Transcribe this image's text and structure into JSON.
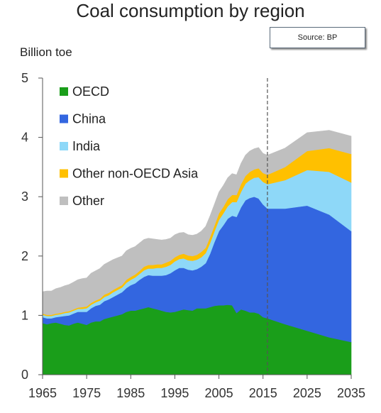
{
  "chart_data": {
    "type": "area",
    "title": "Coal consumption by region",
    "ylabel": "Billion toe",
    "source": "Source: BP",
    "ylim": [
      0,
      5
    ],
    "xlim": [
      1965,
      2035
    ],
    "yticks": [
      0,
      1,
      2,
      3,
      4,
      5
    ],
    "xticks": [
      1965,
      1975,
      1985,
      1995,
      2005,
      2015,
      2025,
      2035
    ],
    "forecast_divider_x": 2016,
    "stacked": true,
    "legend_position": "top-left",
    "grid": false,
    "x": [
      1965,
      1966,
      1967,
      1968,
      1969,
      1970,
      1971,
      1972,
      1973,
      1974,
      1975,
      1976,
      1977,
      1978,
      1979,
      1980,
      1981,
      1982,
      1983,
      1984,
      1985,
      1986,
      1987,
      1988,
      1989,
      1990,
      1991,
      1992,
      1993,
      1994,
      1995,
      1996,
      1997,
      1998,
      1999,
      2000,
      2001,
      2002,
      2003,
      2004,
      2005,
      2006,
      2007,
      2008,
      2009,
      2010,
      2011,
      2012,
      2013,
      2014,
      2015,
      2016,
      2020,
      2025,
      2030,
      2035
    ],
    "series": [
      {
        "name": "OECD",
        "color": "#1a9e1a",
        "values": [
          0.87,
          0.85,
          0.87,
          0.88,
          0.86,
          0.84,
          0.83,
          0.86,
          0.88,
          0.86,
          0.84,
          0.88,
          0.9,
          0.9,
          0.94,
          0.96,
          0.98,
          1.0,
          1.02,
          1.06,
          1.08,
          1.08,
          1.1,
          1.12,
          1.14,
          1.12,
          1.1,
          1.08,
          1.06,
          1.05,
          1.06,
          1.08,
          1.1,
          1.09,
          1.08,
          1.12,
          1.12,
          1.12,
          1.14,
          1.16,
          1.17,
          1.17,
          1.18,
          1.17,
          1.04,
          1.1,
          1.08,
          1.05,
          1.05,
          1.03,
          0.97,
          0.95,
          0.85,
          0.74,
          0.63,
          0.55
        ]
      },
      {
        "name": "China",
        "color": "#3366e0",
        "values": [
          0.1,
          0.1,
          0.08,
          0.09,
          0.12,
          0.15,
          0.17,
          0.17,
          0.18,
          0.2,
          0.22,
          0.24,
          0.26,
          0.28,
          0.3,
          0.31,
          0.33,
          0.35,
          0.37,
          0.4,
          0.43,
          0.46,
          0.5,
          0.53,
          0.54,
          0.55,
          0.57,
          0.59,
          0.62,
          0.66,
          0.7,
          0.72,
          0.7,
          0.68,
          0.68,
          0.66,
          0.7,
          0.76,
          0.9,
          1.08,
          1.25,
          1.35,
          1.45,
          1.51,
          1.62,
          1.72,
          1.86,
          1.93,
          1.95,
          1.94,
          1.9,
          1.85,
          1.95,
          2.11,
          2.07,
          1.87
        ]
      },
      {
        "name": "India",
        "color": "#8ed8f8",
        "values": [
          0.04,
          0.04,
          0.04,
          0.04,
          0.04,
          0.05,
          0.05,
          0.05,
          0.05,
          0.05,
          0.06,
          0.06,
          0.06,
          0.07,
          0.07,
          0.07,
          0.08,
          0.08,
          0.08,
          0.09,
          0.09,
          0.1,
          0.1,
          0.11,
          0.11,
          0.12,
          0.13,
          0.13,
          0.14,
          0.14,
          0.15,
          0.15,
          0.16,
          0.16,
          0.16,
          0.16,
          0.16,
          0.17,
          0.18,
          0.18,
          0.19,
          0.2,
          0.21,
          0.23,
          0.25,
          0.26,
          0.28,
          0.3,
          0.32,
          0.36,
          0.38,
          0.41,
          0.48,
          0.6,
          0.72,
          0.82
        ]
      },
      {
        "name": "Other non-OECD Asia",
        "color": "#ffc000",
        "values": [
          0.02,
          0.02,
          0.02,
          0.02,
          0.02,
          0.02,
          0.02,
          0.02,
          0.02,
          0.03,
          0.03,
          0.03,
          0.03,
          0.03,
          0.04,
          0.04,
          0.04,
          0.04,
          0.04,
          0.05,
          0.05,
          0.05,
          0.05,
          0.06,
          0.06,
          0.06,
          0.06,
          0.06,
          0.07,
          0.07,
          0.07,
          0.07,
          0.08,
          0.08,
          0.08,
          0.08,
          0.09,
          0.09,
          0.1,
          0.1,
          0.11,
          0.11,
          0.12,
          0.12,
          0.12,
          0.13,
          0.13,
          0.14,
          0.14,
          0.15,
          0.15,
          0.16,
          0.22,
          0.32,
          0.4,
          0.48
        ]
      },
      {
        "name": "Other",
        "color": "#bfbfbf",
        "values": [
          0.37,
          0.4,
          0.4,
          0.42,
          0.43,
          0.44,
          0.45,
          0.46,
          0.47,
          0.48,
          0.48,
          0.5,
          0.5,
          0.51,
          0.51,
          0.52,
          0.51,
          0.5,
          0.49,
          0.49,
          0.48,
          0.47,
          0.47,
          0.46,
          0.45,
          0.44,
          0.42,
          0.41,
          0.39,
          0.38,
          0.38,
          0.37,
          0.36,
          0.35,
          0.35,
          0.35,
          0.35,
          0.36,
          0.36,
          0.36,
          0.36,
          0.36,
          0.36,
          0.36,
          0.34,
          0.35,
          0.35,
          0.35,
          0.35,
          0.35,
          0.33,
          0.33,
          0.32,
          0.31,
          0.3,
          0.3
        ]
      }
    ]
  }
}
